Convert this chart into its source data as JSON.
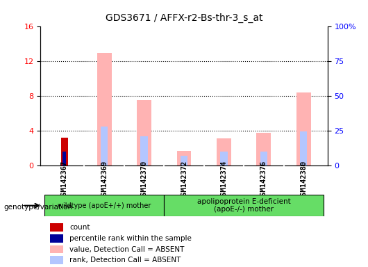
{
  "title": "GDS3671 / AFFX-r2-Bs-thr-3_s_at",
  "samples": [
    "GSM142367",
    "GSM142369",
    "GSM142370",
    "GSM142372",
    "GSM142374",
    "GSM142376",
    "GSM142380"
  ],
  "count": [
    3.2,
    0,
    0,
    0,
    0,
    0,
    0
  ],
  "percentile_rank": [
    1.6,
    0,
    0,
    0,
    0,
    0,
    0
  ],
  "value_absent": [
    0,
    13.0,
    7.5,
    1.7,
    3.1,
    3.8,
    8.4
  ],
  "rank_absent": [
    0,
    4.5,
    3.4,
    1.1,
    1.6,
    1.6,
    3.9
  ],
  "ylim_left": [
    0,
    16
  ],
  "ylim_right": [
    0,
    100
  ],
  "yticks_left": [
    0,
    4,
    8,
    12,
    16
  ],
  "yticks_right": [
    0,
    25,
    50,
    75,
    100
  ],
  "yticklabels_right": [
    "0",
    "25",
    "50",
    "75",
    "100%"
  ],
  "color_count": "#cc0000",
  "color_rank": "#000099",
  "color_value_absent": "#ffb3b3",
  "color_rank_absent": "#b3c6ff",
  "group1_label": "wildtype (apoE+/+) mother",
  "group2_label": "apolipoprotein E-deficient\n(apoE-/-) mother",
  "group1_samples": [
    0,
    1,
    2
  ],
  "group2_samples": [
    3,
    4,
    5,
    6
  ],
  "group_label_row": "genotype/variation",
  "legend_items": [
    {
      "label": "count",
      "color": "#cc0000"
    },
    {
      "label": "percentile rank within the sample",
      "color": "#000099"
    },
    {
      "label": "value, Detection Call = ABSENT",
      "color": "#ffb3b3"
    },
    {
      "label": "rank, Detection Call = ABSENT",
      "color": "#b3c6ff"
    }
  ],
  "bar_width": 0.4,
  "background_color": "#ffffff",
  "plot_bg_color": "#ffffff",
  "tick_area_color": "#cccccc",
  "green_color": "#66dd66"
}
